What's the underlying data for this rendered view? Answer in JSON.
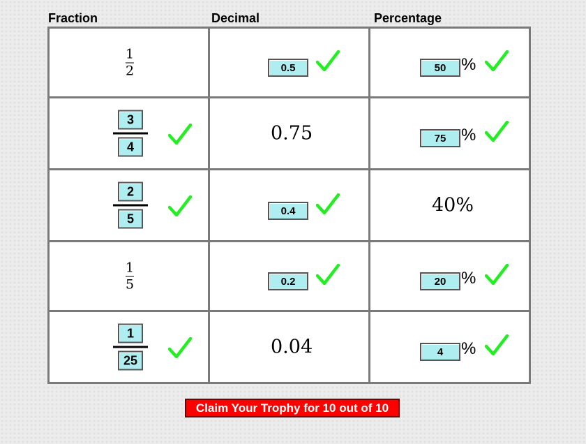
{
  "headers": {
    "fraction": "Fraction",
    "decimal": "Decimal",
    "percentage": "Percentage"
  },
  "rows": [
    {
      "fraction": {
        "numerator": "1",
        "denominator": "2"
      },
      "decimal": "0.5",
      "percentage": "50",
      "percent_sign": "%"
    },
    {
      "fraction": {
        "numerator": "3",
        "denominator": "4"
      },
      "decimal": "0.75",
      "percentage": "75",
      "percent_sign": "%"
    },
    {
      "fraction": {
        "numerator": "2",
        "denominator": "5"
      },
      "decimal": "0.4",
      "percentage": "40%",
      "percent_sign": ""
    },
    {
      "fraction": {
        "numerator": "1",
        "denominator": "5"
      },
      "decimal": "0.2",
      "percentage": "20",
      "percent_sign": "%"
    },
    {
      "fraction": {
        "numerator": "1",
        "denominator": "25"
      },
      "decimal": "0.04",
      "percentage": "4",
      "percent_sign": "%"
    }
  ],
  "trophy_button": "Claim Your Trophy for 10 out of 10",
  "icons": {
    "check": "checkmark-icon"
  },
  "colors": {
    "check": "#22ee22",
    "input_bg": "#aeeef0",
    "button_bg": "#ff0000"
  }
}
